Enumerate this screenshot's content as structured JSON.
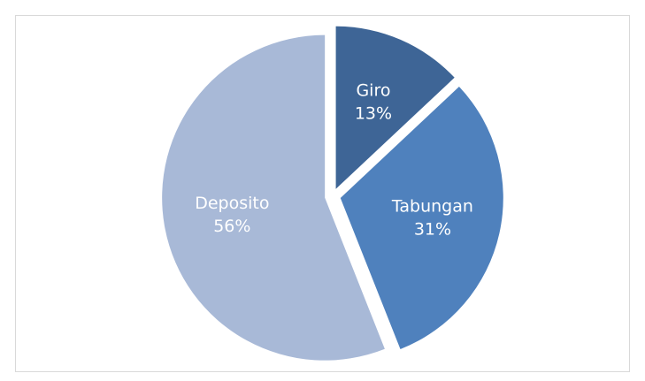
{
  "chart_data": {
    "type": "pie",
    "categories": [
      "Giro",
      "Tabungan",
      "Deposito"
    ],
    "values": [
      13,
      31,
      56
    ],
    "value_labels": [
      "13%",
      "31%",
      "56%"
    ],
    "colors": [
      "#3e6596",
      "#4f81bd",
      "#a8b9d7"
    ]
  }
}
